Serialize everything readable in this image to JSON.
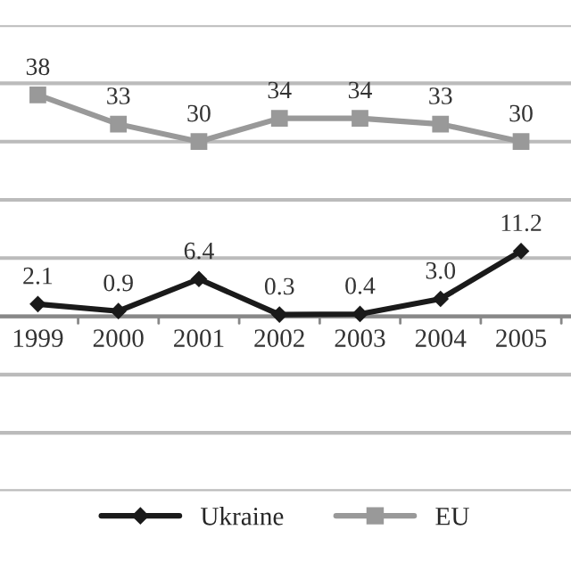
{
  "chart_data": {
    "type": "line",
    "categories": [
      "1999",
      "2000",
      "2001",
      "2002",
      "2003",
      "2004",
      "2005"
    ],
    "series": [
      {
        "name": "Ukraine",
        "color": "#1a1a1a",
        "marker": "diamond",
        "values": [
          2.1,
          0.9,
          6.4,
          0.3,
          0.4,
          3.0,
          11.2
        ],
        "value_labels": [
          "2.1",
          "0.9",
          "6.4",
          "0.3",
          "0.4",
          "3.0",
          "11.2"
        ]
      },
      {
        "name": "EU",
        "color": "#999999",
        "marker": "square",
        "values": [
          38,
          33,
          30,
          34,
          34,
          33,
          30
        ],
        "value_labels": [
          "38",
          "33",
          "30",
          "34",
          "34",
          "33",
          "30"
        ]
      }
    ],
    "ylim": [
      -30,
      50
    ],
    "yticks": [
      {
        "value": -30,
        "label": null
      },
      {
        "value": -20,
        "label": null
      },
      {
        "value": -10,
        "label": null
      },
      {
        "value": 0,
        "label": null
      },
      {
        "value": 10,
        "label": null
      },
      {
        "value": 20,
        "label": null
      },
      {
        "value": 30,
        "label": null
      },
      {
        "value": 40,
        "label": null
      },
      {
        "value": 50,
        "label": null
      }
    ],
    "grid": "y",
    "legend": "bottom",
    "tick_labels": "x",
    "line_style": "solid"
  }
}
